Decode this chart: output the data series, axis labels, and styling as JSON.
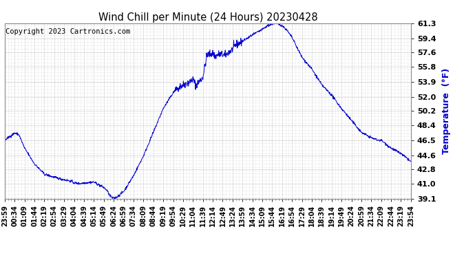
{
  "title": "Wind Chill per Minute (24 Hours) 20230428",
  "ylabel": "Temperature  (°F)",
  "copyright": "Copyright 2023 Cartronics.com",
  "line_color": "#0000cc",
  "ylabel_color": "#0000cc",
  "background_color": "#ffffff",
  "grid_color": "#aaaaaa",
  "ylim": [
    39.1,
    61.3
  ],
  "yticks": [
    39.1,
    41.0,
    42.8,
    44.6,
    46.5,
    48.4,
    50.2,
    52.0,
    53.9,
    55.8,
    57.6,
    59.4,
    61.3
  ],
  "x_labels": [
    "23:59",
    "00:34",
    "01:09",
    "01:44",
    "02:19",
    "02:54",
    "03:29",
    "04:04",
    "04:39",
    "05:14",
    "05:49",
    "06:24",
    "06:59",
    "07:34",
    "08:09",
    "08:44",
    "09:19",
    "09:54",
    "10:29",
    "11:04",
    "11:39",
    "12:14",
    "12:49",
    "13:24",
    "13:59",
    "14:34",
    "15:09",
    "15:44",
    "16:19",
    "16:54",
    "17:29",
    "18:04",
    "18:39",
    "19:14",
    "19:49",
    "20:24",
    "20:59",
    "21:34",
    "22:09",
    "22:44",
    "23:19",
    "23:54"
  ],
  "key_points": [
    [
      0,
      46.5
    ],
    [
      35,
      47.4
    ],
    [
      50,
      47.2
    ],
    [
      70,
      45.5
    ],
    [
      105,
      43.5
    ],
    [
      140,
      42.2
    ],
    [
      175,
      41.8
    ],
    [
      210,
      41.5
    ],
    [
      235,
      41.3
    ],
    [
      245,
      41.1
    ],
    [
      265,
      41.0
    ],
    [
      280,
      41.1
    ],
    [
      315,
      41.2
    ],
    [
      325,
      41.0
    ],
    [
      350,
      40.5
    ],
    [
      360,
      40.2
    ],
    [
      371,
      39.5
    ],
    [
      380,
      39.2
    ],
    [
      385,
      39.15
    ],
    [
      396,
      39.3
    ],
    [
      420,
      40.0
    ],
    [
      455,
      42.0
    ],
    [
      490,
      44.5
    ],
    [
      525,
      47.5
    ],
    [
      560,
      50.5
    ],
    [
      595,
      52.5
    ],
    [
      615,
      53.2
    ],
    [
      630,
      53.5
    ],
    [
      650,
      53.8
    ],
    [
      665,
      54.2
    ],
    [
      675,
      53.5
    ],
    [
      685,
      53.8
    ],
    [
      700,
      54.5
    ],
    [
      715,
      57.3
    ],
    [
      735,
      57.5
    ],
    [
      745,
      57.1
    ],
    [
      755,
      57.4
    ],
    [
      770,
      57.3
    ],
    [
      780,
      57.2
    ],
    [
      790,
      57.6
    ],
    [
      805,
      58.0
    ],
    [
      815,
      58.5
    ],
    [
      840,
      59.0
    ],
    [
      875,
      59.8
    ],
    [
      910,
      60.5
    ],
    [
      930,
      61.0
    ],
    [
      945,
      61.2
    ],
    [
      955,
      61.3
    ],
    [
      965,
      61.25
    ],
    [
      980,
      61.0
    ],
    [
      995,
      60.5
    ],
    [
      1015,
      59.5
    ],
    [
      1050,
      57.0
    ],
    [
      1085,
      55.5
    ],
    [
      1120,
      53.5
    ],
    [
      1155,
      52.2
    ],
    [
      1190,
      50.5
    ],
    [
      1225,
      49.0
    ],
    [
      1260,
      47.5
    ],
    [
      1295,
      46.8
    ],
    [
      1320,
      46.5
    ],
    [
      1330,
      46.5
    ],
    [
      1365,
      45.5
    ],
    [
      1400,
      44.8
    ],
    [
      1435,
      43.8
    ]
  ]
}
